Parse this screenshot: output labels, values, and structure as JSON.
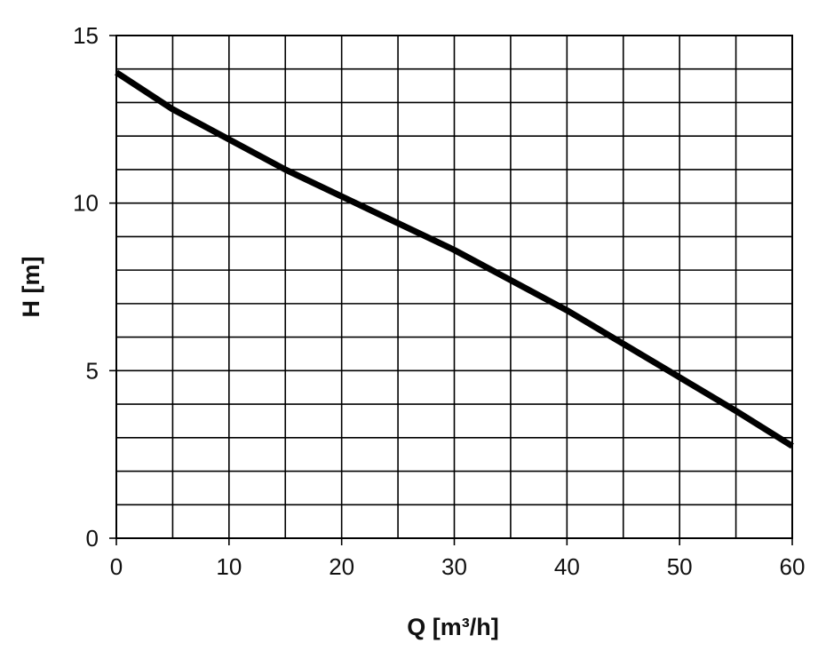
{
  "chart_data": {
    "type": "line",
    "title": "",
    "xlabel": "Q [m³/h]",
    "ylabel": "H [m]",
    "xlim": [
      0,
      60
    ],
    "ylim": [
      0,
      15
    ],
    "x_ticks": [
      0,
      10,
      20,
      30,
      40,
      50,
      60
    ],
    "y_ticks": [
      0,
      5,
      10,
      15
    ],
    "x_tick_labels": [
      "0",
      "10",
      "20",
      "30",
      "40",
      "50",
      "60"
    ],
    "y_tick_labels": [
      "0",
      "5",
      "10",
      "15"
    ],
    "grid": true,
    "grid_x_step": 5,
    "grid_y_step": 1,
    "legend": "none",
    "line_color": "#000000",
    "grid_color": "#000000",
    "series": [
      {
        "x": [
          0,
          5,
          10,
          15,
          20,
          25,
          30,
          35,
          40,
          45,
          50,
          55,
          60
        ],
        "y": [
          13.9,
          12.8,
          11.9,
          11.0,
          10.2,
          9.4,
          8.6,
          7.7,
          6.8,
          5.8,
          4.8,
          3.8,
          2.75
        ]
      }
    ]
  }
}
